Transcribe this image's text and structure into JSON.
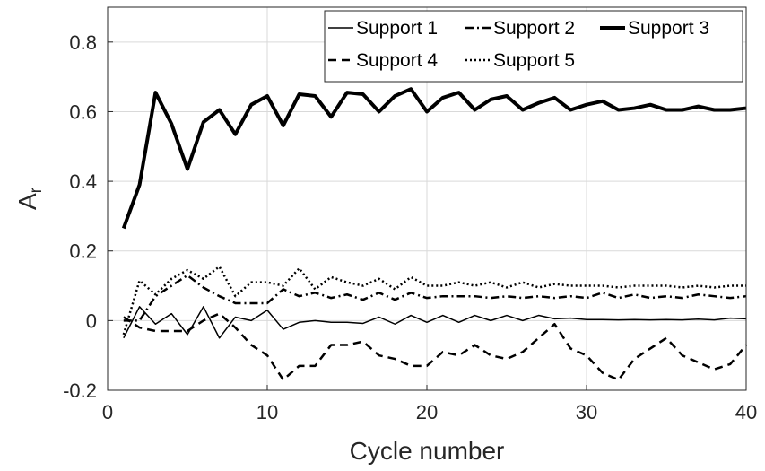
{
  "chart_data": {
    "type": "line",
    "title": "",
    "xlabel": "Cycle number",
    "ylabel_main": "A",
    "ylabel_sub": "r",
    "xlim": [
      0,
      40
    ],
    "ylim": [
      -0.2,
      0.9
    ],
    "xticks": [
      0,
      10,
      20,
      30,
      40
    ],
    "yticks": [
      -0.2,
      0,
      0.2,
      0.4,
      0.6,
      0.8
    ],
    "ytick_labels": [
      "-0.2",
      "0",
      "0.2",
      "0.4",
      "0.6",
      "0.8"
    ],
    "grid": true,
    "legend_position": "top-right",
    "x": [
      1,
      2,
      3,
      4,
      5,
      6,
      7,
      8,
      9,
      10,
      11,
      12,
      13,
      14,
      15,
      16,
      17,
      18,
      19,
      20,
      21,
      22,
      23,
      24,
      25,
      26,
      27,
      28,
      29,
      30,
      31,
      32,
      33,
      34,
      35,
      36,
      37,
      38,
      39,
      40
    ],
    "series": [
      {
        "name": "Support 1",
        "style": "solid-thin",
        "color": "#000000",
        "values": [
          -0.05,
          0.04,
          -0.01,
          0.02,
          -0.04,
          0.04,
          -0.05,
          0.01,
          0.0,
          0.03,
          -0.025,
          -0.005,
          0.0,
          -0.005,
          -0.005,
          -0.008,
          0.01,
          -0.01,
          0.015,
          -0.005,
          0.015,
          -0.005,
          0.015,
          0.0,
          0.015,
          0.0,
          0.015,
          0.005,
          0.007,
          0.003,
          0.003,
          0.002,
          0.003,
          0.002,
          0.003,
          0.002,
          0.004,
          0.002,
          0.007,
          0.005
        ]
      },
      {
        "name": "Support 2",
        "style": "dashdot",
        "color": "#000000",
        "values": [
          0.0,
          0.0,
          0.07,
          0.1,
          0.13,
          0.095,
          0.07,
          0.05,
          0.05,
          0.05,
          0.09,
          0.07,
          0.08,
          0.065,
          0.075,
          0.06,
          0.08,
          0.06,
          0.08,
          0.065,
          0.07,
          0.07,
          0.07,
          0.065,
          0.07,
          0.065,
          0.07,
          0.065,
          0.07,
          0.065,
          0.08,
          0.065,
          0.075,
          0.065,
          0.07,
          0.065,
          0.075,
          0.07,
          0.065,
          0.07
        ]
      },
      {
        "name": "Support 3",
        "style": "solid-thick",
        "color": "#000000",
        "values": [
          0.265,
          0.39,
          0.655,
          0.565,
          0.435,
          0.57,
          0.605,
          0.535,
          0.62,
          0.645,
          0.56,
          0.65,
          0.645,
          0.585,
          0.655,
          0.65,
          0.6,
          0.645,
          0.665,
          0.6,
          0.64,
          0.655,
          0.605,
          0.635,
          0.645,
          0.605,
          0.625,
          0.64,
          0.605,
          0.62,
          0.63,
          0.605,
          0.61,
          0.62,
          0.605,
          0.605,
          0.615,
          0.605,
          0.605,
          0.61
        ]
      },
      {
        "name": "Support 4",
        "style": "dashed",
        "color": "#000000",
        "values": [
          0.01,
          -0.02,
          -0.03,
          -0.03,
          -0.03,
          0.0,
          0.02,
          -0.02,
          -0.07,
          -0.1,
          -0.17,
          -0.13,
          -0.13,
          -0.07,
          -0.07,
          -0.06,
          -0.1,
          -0.11,
          -0.13,
          -0.13,
          -0.09,
          -0.1,
          -0.07,
          -0.1,
          -0.11,
          -0.09,
          -0.05,
          -0.01,
          -0.08,
          -0.1,
          -0.15,
          -0.17,
          -0.11,
          -0.08,
          -0.05,
          -0.1,
          -0.12,
          -0.14,
          -0.125,
          -0.07
        ]
      },
      {
        "name": "Support 5",
        "style": "dotted",
        "color": "#000000",
        "values": [
          -0.04,
          0.115,
          0.075,
          0.12,
          0.145,
          0.12,
          0.155,
          0.07,
          0.11,
          0.11,
          0.1,
          0.15,
          0.09,
          0.125,
          0.11,
          0.1,
          0.12,
          0.09,
          0.125,
          0.1,
          0.1,
          0.11,
          0.1,
          0.11,
          0.095,
          0.11,
          0.095,
          0.105,
          0.1,
          0.1,
          0.1,
          0.095,
          0.1,
          0.1,
          0.1,
          0.095,
          0.1,
          0.095,
          0.1,
          0.1
        ]
      }
    ]
  }
}
